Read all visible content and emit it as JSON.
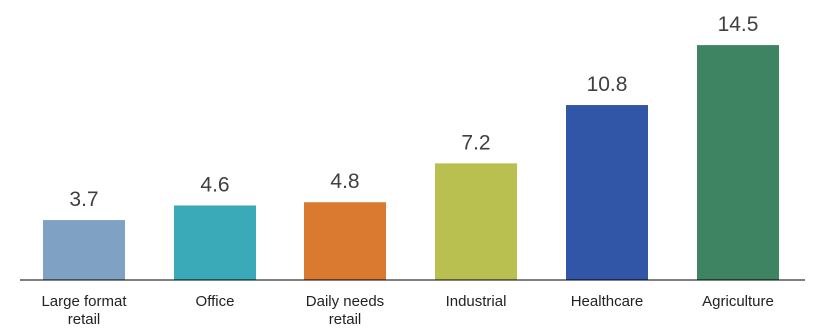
{
  "chart_data": {
    "type": "bar",
    "title": "",
    "xlabel": "",
    "ylabel": "",
    "ylim": [
      0,
      15
    ],
    "grid": false,
    "legend": "none",
    "categories": [
      "Large format retail",
      "Office",
      "Daily needs retail",
      "Industrial",
      "Healthcare",
      "Agriculture"
    ],
    "category_lines": [
      [
        "Large format",
        "retail"
      ],
      [
        "Office"
      ],
      [
        "Daily needs",
        "retail"
      ],
      [
        "Industrial"
      ],
      [
        "Healthcare"
      ],
      [
        "Agriculture"
      ]
    ],
    "values": [
      3.7,
      4.6,
      4.8,
      7.2,
      10.8,
      14.5
    ],
    "value_labels": [
      "3.7",
      "4.6",
      "4.8",
      "7.2",
      "10.8",
      "14.5"
    ],
    "colors": [
      "#7fa2c4",
      "#3aa9b8",
      "#d97a30",
      "#b9c04f",
      "#3156a7",
      "#3f8462"
    ],
    "axis_color": "#000000"
  }
}
